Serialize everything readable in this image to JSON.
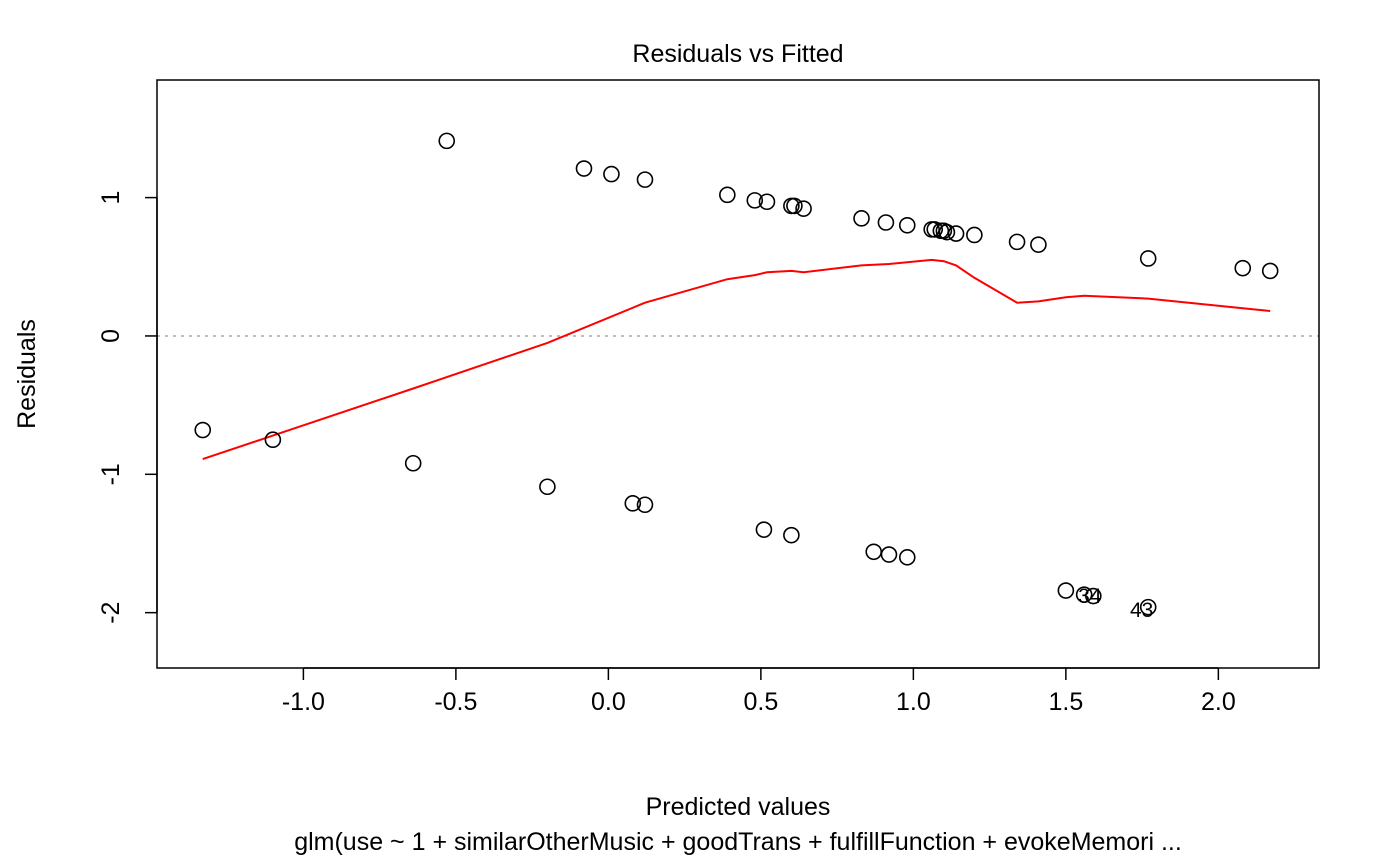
{
  "chart_data": {
    "type": "scatter",
    "title": "Residuals vs Fitted",
    "xlabel": "Predicted values",
    "ylabel": "Residuals",
    "subtitle": "glm(use ~ 1 + similarOtherMusic + goodTrans + fulfillFunction + evokeMemori ...",
    "xlim": [
      -1.48,
      2.33
    ],
    "ylim": [
      -2.4,
      1.85
    ],
    "xticks": [
      -1.0,
      -0.5,
      0.0,
      0.5,
      1.0,
      1.5,
      2.0
    ],
    "xtick_labels": [
      "-1.0",
      "-0.5",
      "0.0",
      "0.5",
      "1.0",
      "1.5",
      "2.0"
    ],
    "yticks": [
      -2,
      -1,
      0,
      1
    ],
    "ytick_labels": [
      "-2",
      "-1",
      "0",
      "1"
    ],
    "reference_line_y": 0,
    "reference_line_color": "#a8a8a8",
    "smooth_color": "#ff0000",
    "points": [
      {
        "x": -1.33,
        "y": -0.68
      },
      {
        "x": -1.1,
        "y": -0.75
      },
      {
        "x": -0.64,
        "y": -0.92
      },
      {
        "x": -0.53,
        "y": 1.41
      },
      {
        "x": -0.2,
        "y": -1.09
      },
      {
        "x": -0.08,
        "y": 1.21
      },
      {
        "x": 0.01,
        "y": 1.17
      },
      {
        "x": 0.08,
        "y": -1.21
      },
      {
        "x": 0.12,
        "y": 1.13
      },
      {
        "x": 0.12,
        "y": -1.22
      },
      {
        "x": 0.39,
        "y": 1.02
      },
      {
        "x": 0.48,
        "y": 0.98
      },
      {
        "x": 0.52,
        "y": 0.97
      },
      {
        "x": 0.51,
        "y": -1.4
      },
      {
        "x": 0.6,
        "y": 0.94
      },
      {
        "x": 0.61,
        "y": 0.94
      },
      {
        "x": 0.6,
        "y": -1.44
      },
      {
        "x": 0.64,
        "y": 0.92
      },
      {
        "x": 0.83,
        "y": 0.85
      },
      {
        "x": 0.87,
        "y": -1.56
      },
      {
        "x": 0.91,
        "y": 0.82
      },
      {
        "x": 0.92,
        "y": -1.58
      },
      {
        "x": 0.98,
        "y": 0.8
      },
      {
        "x": 0.98,
        "y": -1.6
      },
      {
        "x": 1.06,
        "y": 0.77
      },
      {
        "x": 1.07,
        "y": 0.77
      },
      {
        "x": 1.09,
        "y": 0.76
      },
      {
        "x": 1.1,
        "y": 0.76
      },
      {
        "x": 1.11,
        "y": 0.75
      },
      {
        "x": 1.14,
        "y": 0.74
      },
      {
        "x": 1.2,
        "y": 0.73
      },
      {
        "x": 1.34,
        "y": 0.68
      },
      {
        "x": 1.41,
        "y": 0.66
      },
      {
        "x": 1.5,
        "y": -1.84
      },
      {
        "x": 1.56,
        "y": -1.87
      },
      {
        "x": 1.59,
        "y": -1.88
      },
      {
        "x": 1.77,
        "y": 0.56
      },
      {
        "x": 1.77,
        "y": -1.96
      },
      {
        "x": 2.08,
        "y": 0.49
      },
      {
        "x": 2.17,
        "y": 0.47
      }
    ],
    "point_labels": [
      {
        "text": "34",
        "x": 1.56,
        "y": -1.88
      },
      {
        "text": "43",
        "x": 1.73,
        "y": -1.98
      }
    ],
    "smooth": [
      {
        "x": -1.33,
        "y": -0.89
      },
      {
        "x": -1.1,
        "y": -0.72
      },
      {
        "x": -0.64,
        "y": -0.38
      },
      {
        "x": -0.2,
        "y": -0.05
      },
      {
        "x": 0.12,
        "y": 0.24
      },
      {
        "x": 0.39,
        "y": 0.41
      },
      {
        "x": 0.48,
        "y": 0.44
      },
      {
        "x": 0.52,
        "y": 0.46
      },
      {
        "x": 0.6,
        "y": 0.47
      },
      {
        "x": 0.64,
        "y": 0.46
      },
      {
        "x": 0.83,
        "y": 0.51
      },
      {
        "x": 0.92,
        "y": 0.52
      },
      {
        "x": 1.06,
        "y": 0.55
      },
      {
        "x": 1.1,
        "y": 0.54
      },
      {
        "x": 1.14,
        "y": 0.51
      },
      {
        "x": 1.2,
        "y": 0.42
      },
      {
        "x": 1.34,
        "y": 0.24
      },
      {
        "x": 1.41,
        "y": 0.25
      },
      {
        "x": 1.5,
        "y": 0.28
      },
      {
        "x": 1.56,
        "y": 0.29
      },
      {
        "x": 1.77,
        "y": 0.27
      },
      {
        "x": 2.08,
        "y": 0.2
      },
      {
        "x": 2.17,
        "y": 0.18
      }
    ]
  }
}
